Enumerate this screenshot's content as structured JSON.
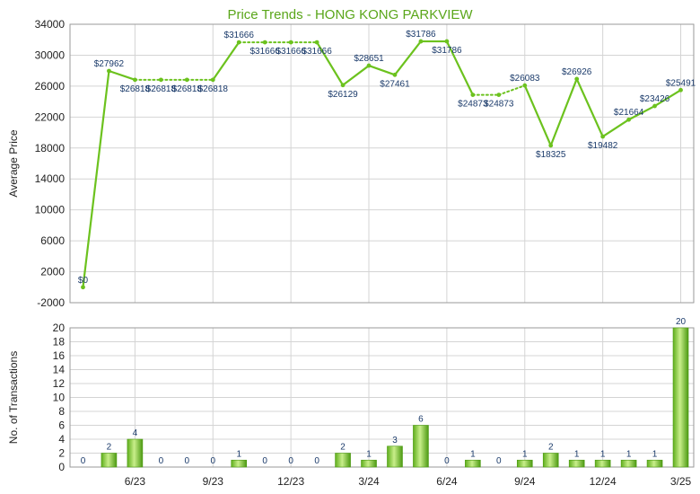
{
  "title": "Price Trends - HONG KONG PARKVIEW",
  "colors": {
    "line": "#6cc21e",
    "bar_light": "#c8ee8a",
    "bar_dark": "#4c9a12",
    "title": "#5aa61a",
    "label": "#1a3a6a"
  },
  "chart_data": [
    {
      "type": "line",
      "title": "Price Trends - HONG KONG PARKVIEW",
      "ylabel": "Average Price",
      "ylim": [
        -2000,
        34000
      ],
      "yticks": [
        -2000,
        2000,
        6000,
        10000,
        14000,
        18000,
        22000,
        26000,
        30000,
        34000
      ],
      "grid": true,
      "values": [
        0,
        27962,
        26818,
        26818,
        26818,
        26818,
        31666,
        31666,
        31666,
        31666,
        26129,
        28651,
        27461,
        31786,
        31786,
        24873,
        24873,
        26083,
        18325,
        26926,
        19482,
        21664,
        23426,
        25491
      ],
      "data_labels": [
        "$0",
        "$27962",
        "$26818",
        "$26818",
        "$26818",
        "$26818",
        "$31666",
        "$31666",
        "$31666",
        "$31666",
        "$26129",
        "$28651",
        "$27461",
        "$31786",
        "$31786",
        "$24873",
        "$24873",
        "$26083",
        "$18325",
        "$26926",
        "$19482",
        "$21664",
        "$23426",
        "$25491"
      ],
      "interpolated": [
        false,
        false,
        false,
        true,
        true,
        false,
        false,
        true,
        true,
        false,
        false,
        false,
        false,
        false,
        false,
        false,
        true,
        false,
        false,
        false,
        false,
        false,
        false,
        false
      ]
    },
    {
      "type": "bar",
      "ylabel": "No. of Transactions",
      "ylim": [
        0,
        20
      ],
      "yticks": [
        0,
        2,
        4,
        6,
        8,
        10,
        12,
        14,
        16,
        18,
        20
      ],
      "grid": true,
      "values": [
        0,
        2,
        4,
        0,
        0,
        0,
        1,
        0,
        0,
        0,
        2,
        1,
        3,
        6,
        0,
        1,
        0,
        1,
        2,
        1,
        1,
        1,
        1,
        20
      ],
      "data_labels": [
        "0",
        "2",
        "4",
        "0",
        "0",
        "0",
        "1",
        "0",
        "0",
        "0",
        "2",
        "1",
        "3",
        "6",
        "0",
        "1",
        "0",
        "1",
        "2",
        "1",
        "1",
        "1",
        "1",
        "20"
      ]
    }
  ],
  "x_axis": {
    "tick_labels": [
      "6/23",
      "9/23",
      "12/23",
      "3/24",
      "6/24",
      "9/24",
      "12/24",
      "3/25"
    ],
    "tick_positions": [
      2,
      5,
      8,
      11,
      14,
      17,
      20,
      23
    ]
  }
}
